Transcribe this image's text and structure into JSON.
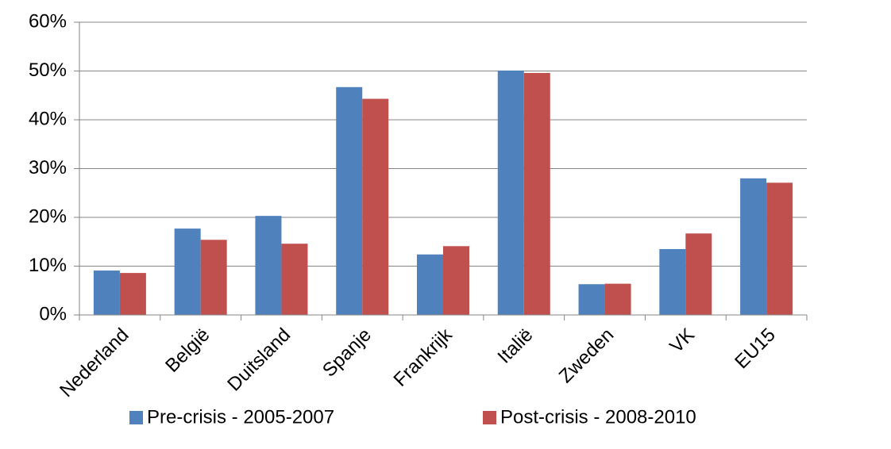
{
  "chart_data": {
    "type": "bar",
    "categories": [
      "Nederland",
      "België",
      "Duitsland",
      "Spanje",
      "Frankrijk",
      "Italië",
      "Zweden",
      "VK",
      "EU15"
    ],
    "series": [
      {
        "name": "Pre-crisis - 2005-2007",
        "color": "#4f81bd",
        "values": [
          9.1,
          17.7,
          20.3,
          46.7,
          12.4,
          50.1,
          6.3,
          13.5,
          28.0
        ]
      },
      {
        "name": "Post-crisis - 2008-2010",
        "color": "#c0504d",
        "values": [
          8.6,
          15.4,
          14.6,
          44.3,
          14.1,
          49.6,
          6.4,
          16.7,
          27.1
        ]
      }
    ],
    "ylim": [
      0,
      60
    ],
    "yticks": [
      {
        "value": 0,
        "label": "0%"
      },
      {
        "value": 10,
        "label": "10%"
      },
      {
        "value": 20,
        "label": "20%"
      },
      {
        "value": 30,
        "label": "30%"
      },
      {
        "value": 40,
        "label": "40%"
      },
      {
        "value": 50,
        "label": "50%"
      },
      {
        "value": 60,
        "label": "60%"
      }
    ],
    "grid": true,
    "legend": "bottom"
  }
}
